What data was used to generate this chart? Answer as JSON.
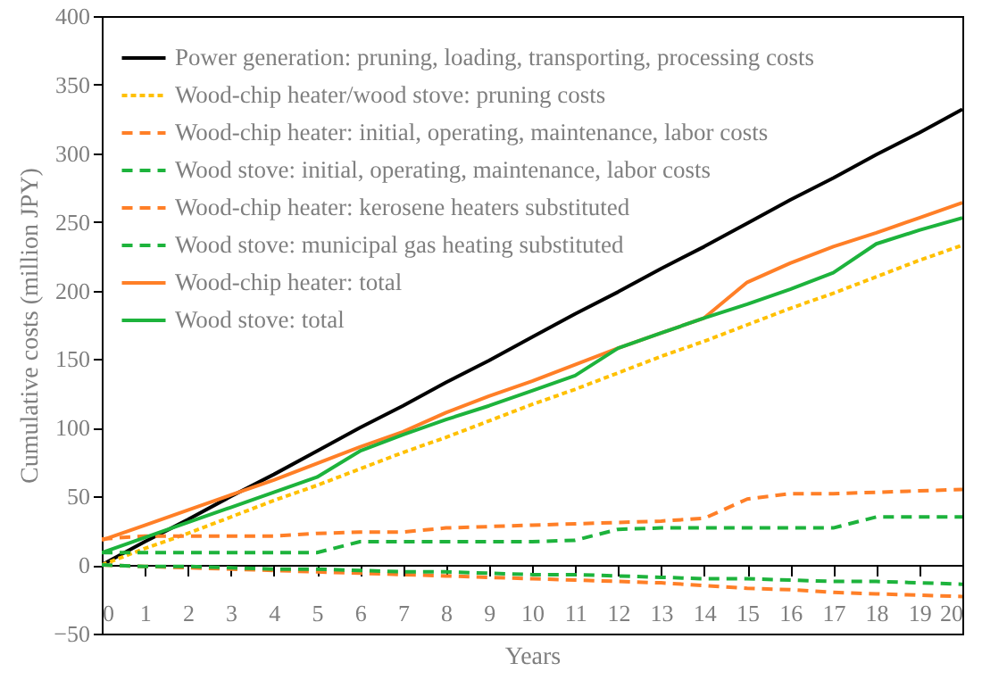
{
  "chart_data": {
    "type": "line",
    "xlabel": "Years",
    "ylabel": "Cumulative costs (million JPY)",
    "legend": "top left",
    "x": [
      0,
      1,
      2,
      3,
      4,
      5,
      6,
      7,
      8,
      9,
      10,
      11,
      12,
      13,
      14,
      15,
      16,
      17,
      18,
      19,
      20
    ],
    "xlim": [
      0,
      20
    ],
    "xticks": [
      0,
      1,
      2,
      3,
      4,
      5,
      6,
      7,
      8,
      9,
      10,
      11,
      12,
      13,
      14,
      15,
      16,
      17,
      18,
      19,
      20
    ],
    "ylim": [
      -50,
      400
    ],
    "yticks": [
      -50,
      0,
      50,
      100,
      150,
      200,
      250,
      300,
      350,
      400
    ],
    "series": [
      {
        "name": "Power generation: pruning, loading, transporting, processing costs",
        "color": "#000000",
        "line_style": "solid",
        "values": [
          0,
          17,
          33,
          50,
          66,
          83,
          100,
          116,
          133,
          149,
          166,
          183,
          199,
          216,
          232,
          249,
          266,
          282,
          299,
          315,
          332
        ]
      },
      {
        "name": "Wood-chip heater/wood stove: pruning costs",
        "color": "#ffc000",
        "line_style": "dotted",
        "values": [
          0,
          12,
          23,
          35,
          47,
          58,
          70,
          82,
          93,
          105,
          117,
          128,
          140,
          152,
          163,
          175,
          187,
          198,
          210,
          222,
          233
        ]
      },
      {
        "name": "Wood-chip heater: initial, operating, maintenance, labor costs",
        "color": "#ff7f27",
        "line_style": "dashed",
        "values": [
          19,
          21,
          21,
          21,
          21,
          23,
          24,
          24,
          27,
          28,
          29,
          30,
          31,
          32,
          34,
          48,
          52,
          52,
          53,
          54,
          55
        ]
      },
      {
        "name": "Wood stove: initial, operating, maintenance, labor costs",
        "color": "#1db33c",
        "line_style": "dashed",
        "values": [
          9,
          9,
          9,
          9,
          9,
          9,
          17,
          17,
          17,
          17,
          17,
          18,
          26,
          27,
          27,
          27,
          27,
          27,
          35,
          35,
          35
        ]
      },
      {
        "name": "Wood-chip heater: kerosene heaters substituted",
        "color": "#ff7f27",
        "line_style": "dashed",
        "values": [
          0,
          -1,
          -2,
          -3,
          -4,
          -5,
          -6,
          -7,
          -8,
          -9,
          -10,
          -11,
          -12,
          -13,
          -15,
          -17,
          -18,
          -20,
          -21,
          -22,
          -23
        ]
      },
      {
        "name": "Wood stove: municipal gas heating substituted",
        "color": "#1db33c",
        "line_style": "dashed",
        "values": [
          0,
          -1,
          -1,
          -2,
          -3,
          -3,
          -4,
          -5,
          -5,
          -6,
          -7,
          -7,
          -8,
          -9,
          -10,
          -10,
          -11,
          -12,
          -12,
          -13,
          -14
        ]
      },
      {
        "name": "Wood-chip heater: total",
        "color": "#ff7f27",
        "line_style": "solid",
        "values": [
          18,
          29,
          40,
          51,
          62,
          74,
          86,
          97,
          111,
          123,
          134,
          146,
          158,
          169,
          180,
          206,
          220,
          232,
          242,
          253,
          264
        ]
      },
      {
        "name": "Wood stove: total",
        "color": "#1db33c",
        "line_style": "solid",
        "values": [
          9,
          20,
          31,
          42,
          53,
          64,
          83,
          95,
          106,
          116,
          127,
          138,
          158,
          169,
          180,
          190,
          201,
          213,
          234,
          244,
          253
        ]
      }
    ]
  }
}
